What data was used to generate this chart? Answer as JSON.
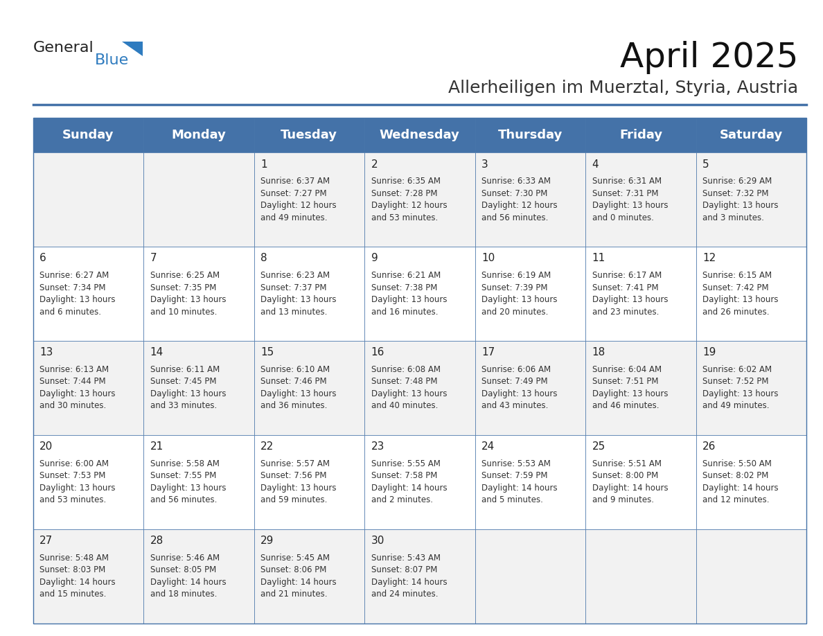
{
  "title": "April 2025",
  "subtitle": "Allerheiligen im Muerztal, Styria, Austria",
  "header_bg": "#4472a8",
  "header_text": "#ffffff",
  "row_bg_odd": "#f2f2f2",
  "row_bg_even": "#ffffff",
  "border_color": "#4472a8",
  "day_names": [
    "Sunday",
    "Monday",
    "Tuesday",
    "Wednesday",
    "Thursday",
    "Friday",
    "Saturday"
  ],
  "weeks": [
    [
      {
        "day": "",
        "info": ""
      },
      {
        "day": "",
        "info": ""
      },
      {
        "day": "1",
        "info": "Sunrise: 6:37 AM\nSunset: 7:27 PM\nDaylight: 12 hours\nand 49 minutes."
      },
      {
        "day": "2",
        "info": "Sunrise: 6:35 AM\nSunset: 7:28 PM\nDaylight: 12 hours\nand 53 minutes."
      },
      {
        "day": "3",
        "info": "Sunrise: 6:33 AM\nSunset: 7:30 PM\nDaylight: 12 hours\nand 56 minutes."
      },
      {
        "day": "4",
        "info": "Sunrise: 6:31 AM\nSunset: 7:31 PM\nDaylight: 13 hours\nand 0 minutes."
      },
      {
        "day": "5",
        "info": "Sunrise: 6:29 AM\nSunset: 7:32 PM\nDaylight: 13 hours\nand 3 minutes."
      }
    ],
    [
      {
        "day": "6",
        "info": "Sunrise: 6:27 AM\nSunset: 7:34 PM\nDaylight: 13 hours\nand 6 minutes."
      },
      {
        "day": "7",
        "info": "Sunrise: 6:25 AM\nSunset: 7:35 PM\nDaylight: 13 hours\nand 10 minutes."
      },
      {
        "day": "8",
        "info": "Sunrise: 6:23 AM\nSunset: 7:37 PM\nDaylight: 13 hours\nand 13 minutes."
      },
      {
        "day": "9",
        "info": "Sunrise: 6:21 AM\nSunset: 7:38 PM\nDaylight: 13 hours\nand 16 minutes."
      },
      {
        "day": "10",
        "info": "Sunrise: 6:19 AM\nSunset: 7:39 PM\nDaylight: 13 hours\nand 20 minutes."
      },
      {
        "day": "11",
        "info": "Sunrise: 6:17 AM\nSunset: 7:41 PM\nDaylight: 13 hours\nand 23 minutes."
      },
      {
        "day": "12",
        "info": "Sunrise: 6:15 AM\nSunset: 7:42 PM\nDaylight: 13 hours\nand 26 minutes."
      }
    ],
    [
      {
        "day": "13",
        "info": "Sunrise: 6:13 AM\nSunset: 7:44 PM\nDaylight: 13 hours\nand 30 minutes."
      },
      {
        "day": "14",
        "info": "Sunrise: 6:11 AM\nSunset: 7:45 PM\nDaylight: 13 hours\nand 33 minutes."
      },
      {
        "day": "15",
        "info": "Sunrise: 6:10 AM\nSunset: 7:46 PM\nDaylight: 13 hours\nand 36 minutes."
      },
      {
        "day": "16",
        "info": "Sunrise: 6:08 AM\nSunset: 7:48 PM\nDaylight: 13 hours\nand 40 minutes."
      },
      {
        "day": "17",
        "info": "Sunrise: 6:06 AM\nSunset: 7:49 PM\nDaylight: 13 hours\nand 43 minutes."
      },
      {
        "day": "18",
        "info": "Sunrise: 6:04 AM\nSunset: 7:51 PM\nDaylight: 13 hours\nand 46 minutes."
      },
      {
        "day": "19",
        "info": "Sunrise: 6:02 AM\nSunset: 7:52 PM\nDaylight: 13 hours\nand 49 minutes."
      }
    ],
    [
      {
        "day": "20",
        "info": "Sunrise: 6:00 AM\nSunset: 7:53 PM\nDaylight: 13 hours\nand 53 minutes."
      },
      {
        "day": "21",
        "info": "Sunrise: 5:58 AM\nSunset: 7:55 PM\nDaylight: 13 hours\nand 56 minutes."
      },
      {
        "day": "22",
        "info": "Sunrise: 5:57 AM\nSunset: 7:56 PM\nDaylight: 13 hours\nand 59 minutes."
      },
      {
        "day": "23",
        "info": "Sunrise: 5:55 AM\nSunset: 7:58 PM\nDaylight: 14 hours\nand 2 minutes."
      },
      {
        "day": "24",
        "info": "Sunrise: 5:53 AM\nSunset: 7:59 PM\nDaylight: 14 hours\nand 5 minutes."
      },
      {
        "day": "25",
        "info": "Sunrise: 5:51 AM\nSunset: 8:00 PM\nDaylight: 14 hours\nand 9 minutes."
      },
      {
        "day": "26",
        "info": "Sunrise: 5:50 AM\nSunset: 8:02 PM\nDaylight: 14 hours\nand 12 minutes."
      }
    ],
    [
      {
        "day": "27",
        "info": "Sunrise: 5:48 AM\nSunset: 8:03 PM\nDaylight: 14 hours\nand 15 minutes."
      },
      {
        "day": "28",
        "info": "Sunrise: 5:46 AM\nSunset: 8:05 PM\nDaylight: 14 hours\nand 18 minutes."
      },
      {
        "day": "29",
        "info": "Sunrise: 5:45 AM\nSunset: 8:06 PM\nDaylight: 14 hours\nand 21 minutes."
      },
      {
        "day": "30",
        "info": "Sunrise: 5:43 AM\nSunset: 8:07 PM\nDaylight: 14 hours\nand 24 minutes."
      },
      {
        "day": "",
        "info": ""
      },
      {
        "day": "",
        "info": ""
      },
      {
        "day": "",
        "info": ""
      }
    ]
  ],
  "logo_general_color": "#222222",
  "logo_blue_color": "#2e7bbf",
  "logo_triangle_color": "#2e7bbf",
  "title_fontsize": 36,
  "subtitle_fontsize": 18,
  "header_fontsize": 13,
  "day_num_fontsize": 11,
  "info_fontsize": 8.5
}
